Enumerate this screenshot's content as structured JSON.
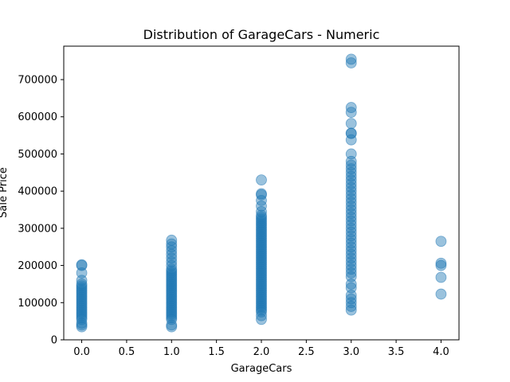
{
  "chart_data": {
    "type": "scatter",
    "title": "Distribution of GarageCars - Numeric",
    "xlabel": "GarageCars",
    "ylabel": "Sale Price",
    "xlim": [
      -0.2,
      4.2
    ],
    "ylim": [
      0,
      790000
    ],
    "xticks": [
      0.0,
      0.5,
      1.0,
      1.5,
      2.0,
      2.5,
      3.0,
      3.5,
      4.0
    ],
    "xtick_labels": [
      "0.0",
      "0.5",
      "1.0",
      "1.5",
      "2.0",
      "2.5",
      "3.0",
      "3.5",
      "4.0"
    ],
    "yticks": [
      0,
      100000,
      200000,
      300000,
      400000,
      500000,
      600000,
      700000
    ],
    "ytick_labels": [
      "0",
      "100000",
      "200000",
      "300000",
      "400000",
      "500000",
      "600000",
      "700000"
    ],
    "grid": false,
    "marker_color": "#1f77b4",
    "marker_alpha": 0.45,
    "series": [
      {
        "points": [
          [
            0,
            35000
          ],
          [
            0,
            40000
          ],
          [
            0,
            45000
          ],
          [
            0,
            55000
          ],
          [
            0,
            60000
          ],
          [
            0,
            65000
          ],
          [
            0,
            70000
          ],
          [
            0,
            75000
          ],
          [
            0,
            80000
          ],
          [
            0,
            85000
          ],
          [
            0,
            90000
          ],
          [
            0,
            95000
          ],
          [
            0,
            100000
          ],
          [
            0,
            105000
          ],
          [
            0,
            110000
          ],
          [
            0,
            115000
          ],
          [
            0,
            120000
          ],
          [
            0,
            125000
          ],
          [
            0,
            130000
          ],
          [
            0,
            135000
          ],
          [
            0,
            140000
          ],
          [
            0,
            145000
          ],
          [
            0,
            150000
          ],
          [
            0,
            160000
          ],
          [
            0,
            180000
          ],
          [
            0,
            200000
          ],
          [
            0,
            202000
          ],
          [
            1,
            35000
          ],
          [
            1,
            40000
          ],
          [
            1,
            55000
          ],
          [
            1,
            60000
          ],
          [
            1,
            65000
          ],
          [
            1,
            70000
          ],
          [
            1,
            75000
          ],
          [
            1,
            80000
          ],
          [
            1,
            85000
          ],
          [
            1,
            90000
          ],
          [
            1,
            95000
          ],
          [
            1,
            100000
          ],
          [
            1,
            105000
          ],
          [
            1,
            110000
          ],
          [
            1,
            115000
          ],
          [
            1,
            120000
          ],
          [
            1,
            125000
          ],
          [
            1,
            130000
          ],
          [
            1,
            135000
          ],
          [
            1,
            140000
          ],
          [
            1,
            145000
          ],
          [
            1,
            150000
          ],
          [
            1,
            155000
          ],
          [
            1,
            160000
          ],
          [
            1,
            165000
          ],
          [
            1,
            170000
          ],
          [
            1,
            175000
          ],
          [
            1,
            180000
          ],
          [
            1,
            185000
          ],
          [
            1,
            190000
          ],
          [
            1,
            200000
          ],
          [
            1,
            210000
          ],
          [
            1,
            220000
          ],
          [
            1,
            230000
          ],
          [
            1,
            240000
          ],
          [
            1,
            250000
          ],
          [
            1,
            258000
          ],
          [
            1,
            268000
          ],
          [
            2,
            55000
          ],
          [
            2,
            65000
          ],
          [
            2,
            75000
          ],
          [
            2,
            80000
          ],
          [
            2,
            85000
          ],
          [
            2,
            90000
          ],
          [
            2,
            95000
          ],
          [
            2,
            100000
          ],
          [
            2,
            105000
          ],
          [
            2,
            110000
          ],
          [
            2,
            115000
          ],
          [
            2,
            120000
          ],
          [
            2,
            125000
          ],
          [
            2,
            130000
          ],
          [
            2,
            135000
          ],
          [
            2,
            140000
          ],
          [
            2,
            145000
          ],
          [
            2,
            150000
          ],
          [
            2,
            155000
          ],
          [
            2,
            160000
          ],
          [
            2,
            165000
          ],
          [
            2,
            170000
          ],
          [
            2,
            175000
          ],
          [
            2,
            180000
          ],
          [
            2,
            185000
          ],
          [
            2,
            190000
          ],
          [
            2,
            195000
          ],
          [
            2,
            200000
          ],
          [
            2,
            205000
          ],
          [
            2,
            210000
          ],
          [
            2,
            215000
          ],
          [
            2,
            220000
          ],
          [
            2,
            225000
          ],
          [
            2,
            230000
          ],
          [
            2,
            235000
          ],
          [
            2,
            240000
          ],
          [
            2,
            245000
          ],
          [
            2,
            250000
          ],
          [
            2,
            255000
          ],
          [
            2,
            260000
          ],
          [
            2,
            265000
          ],
          [
            2,
            270000
          ],
          [
            2,
            275000
          ],
          [
            2,
            280000
          ],
          [
            2,
            285000
          ],
          [
            2,
            290000
          ],
          [
            2,
            295000
          ],
          [
            2,
            300000
          ],
          [
            2,
            305000
          ],
          [
            2,
            310000
          ],
          [
            2,
            315000
          ],
          [
            2,
            320000
          ],
          [
            2,
            325000
          ],
          [
            2,
            330000
          ],
          [
            2,
            335000
          ],
          [
            2,
            345000
          ],
          [
            2,
            360000
          ],
          [
            2,
            375000
          ],
          [
            2,
            390000
          ],
          [
            2,
            393000
          ],
          [
            2,
            430000
          ],
          [
            3,
            80000
          ],
          [
            3,
            90000
          ],
          [
            3,
            100000
          ],
          [
            3,
            110000
          ],
          [
            3,
            120000
          ],
          [
            3,
            140000
          ],
          [
            3,
            150000
          ],
          [
            3,
            170000
          ],
          [
            3,
            180000
          ],
          [
            3,
            190000
          ],
          [
            3,
            200000
          ],
          [
            3,
            210000
          ],
          [
            3,
            220000
          ],
          [
            3,
            230000
          ],
          [
            3,
            240000
          ],
          [
            3,
            250000
          ],
          [
            3,
            260000
          ],
          [
            3,
            270000
          ],
          [
            3,
            280000
          ],
          [
            3,
            290000
          ],
          [
            3,
            300000
          ],
          [
            3,
            310000
          ],
          [
            3,
            320000
          ],
          [
            3,
            330000
          ],
          [
            3,
            340000
          ],
          [
            3,
            350000
          ],
          [
            3,
            360000
          ],
          [
            3,
            370000
          ],
          [
            3,
            380000
          ],
          [
            3,
            390000
          ],
          [
            3,
            400000
          ],
          [
            3,
            410000
          ],
          [
            3,
            420000
          ],
          [
            3,
            430000
          ],
          [
            3,
            440000
          ],
          [
            3,
            450000
          ],
          [
            3,
            460000
          ],
          [
            3,
            470000
          ],
          [
            3,
            480000
          ],
          [
            3,
            500000
          ],
          [
            3,
            538000
          ],
          [
            3,
            555000
          ],
          [
            3,
            556000
          ],
          [
            3,
            582000
          ],
          [
            3,
            612000
          ],
          [
            3,
            625000
          ],
          [
            3,
            745000
          ],
          [
            3,
            755000
          ],
          [
            4,
            123000
          ],
          [
            4,
            168000
          ],
          [
            4,
            200000
          ],
          [
            4,
            206000
          ],
          [
            4,
            265000
          ]
        ]
      }
    ]
  }
}
